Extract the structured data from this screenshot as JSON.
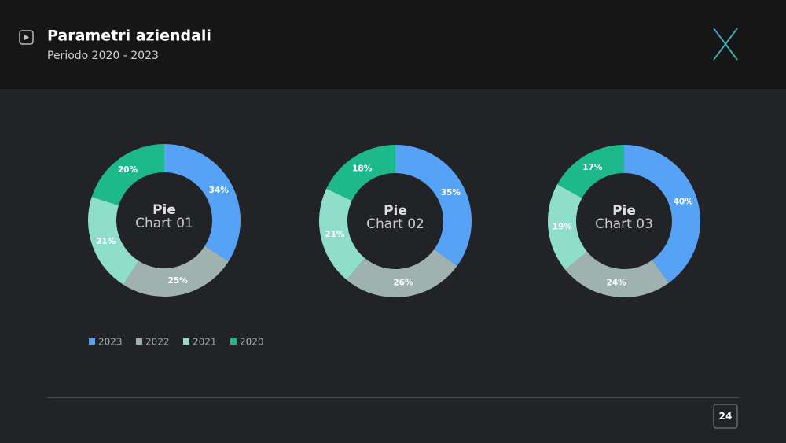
{
  "header": {
    "title": "Parametri aziendali",
    "subtitle": "Periodo 2020 - 2023"
  },
  "page_number": "24",
  "chart_data": [
    {
      "type": "donut",
      "title": "Pie",
      "subtitle": "Chart 01",
      "categories": [
        "2023",
        "2022",
        "2021",
        "2020"
      ],
      "values": [
        34,
        25,
        21,
        20
      ],
      "value_labels": [
        "34%",
        "25%",
        "21%",
        "20%"
      ],
      "colors": [
        "#55a2f6",
        "#9fb2b0",
        "#8fdecb",
        "#1db88b"
      ],
      "legend": "bottom-left"
    },
    {
      "type": "donut",
      "title": "Pie",
      "subtitle": "Chart 02",
      "categories": [
        "2023",
        "2022",
        "2021",
        "2020"
      ],
      "values": [
        35,
        26,
        21,
        18
      ],
      "value_labels": [
        "35%",
        "26%",
        "21%",
        "18%"
      ],
      "colors": [
        "#55a2f6",
        "#9fb2b0",
        "#8fdecb",
        "#1db88b"
      ]
    },
    {
      "type": "donut",
      "title": "Pie",
      "subtitle": "Chart 03",
      "categories": [
        "2023",
        "2022",
        "2021",
        "2020"
      ],
      "values": [
        40,
        24,
        19,
        17
      ],
      "value_labels": [
        "40%",
        "24%",
        "19%",
        "17%"
      ],
      "colors": [
        "#55a2f6",
        "#9fb2b0",
        "#8fdecb",
        "#1db88b"
      ]
    }
  ]
}
